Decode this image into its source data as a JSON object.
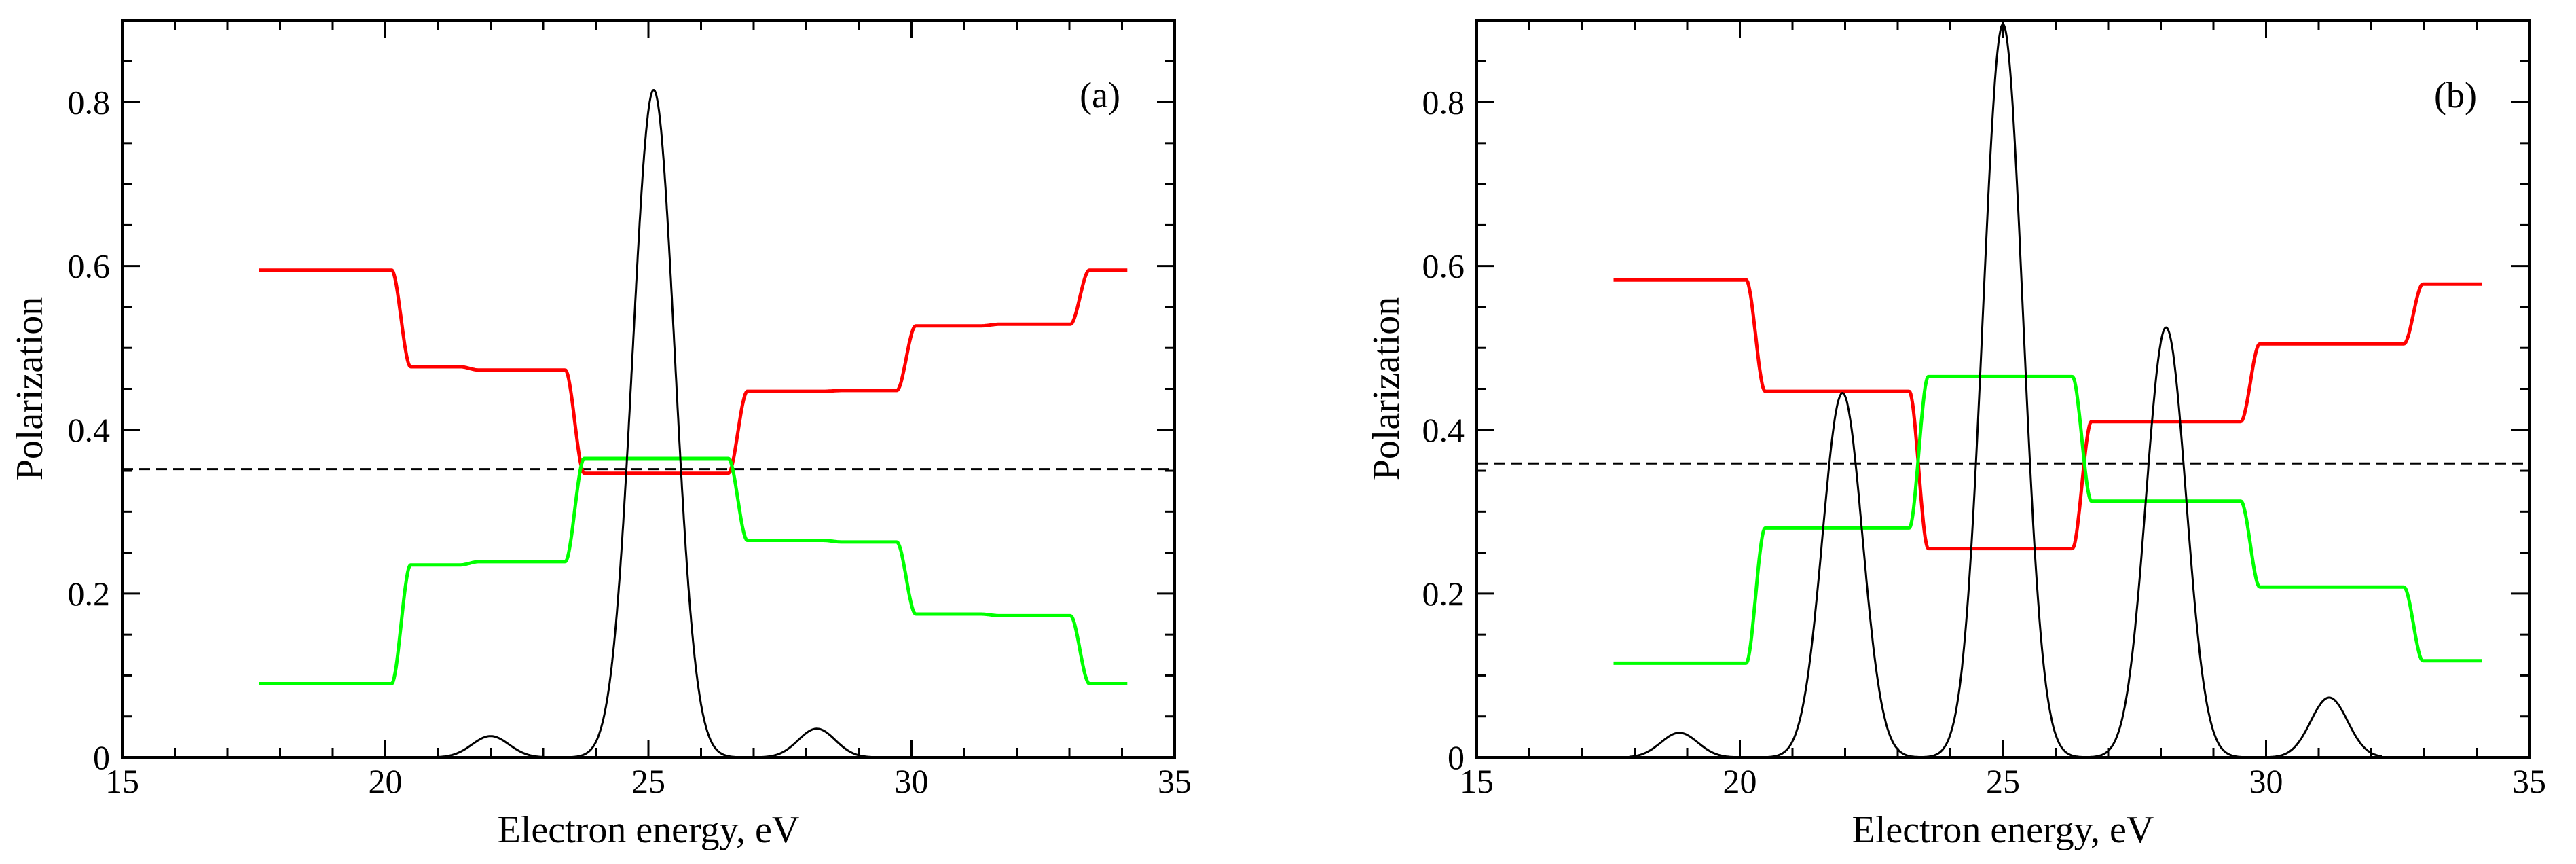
{
  "chart_data": [
    {
      "type": "line",
      "panel_label": "(a)",
      "xlabel": "Electron energy, eV",
      "ylabel": "Polarization",
      "xlim": [
        15,
        35
      ],
      "ylim": [
        0,
        0.9
      ],
      "xticks": [
        15,
        20,
        25,
        30,
        35
      ],
      "xtick_labels": [
        "15",
        "20",
        "25",
        "30",
        "35"
      ],
      "yticks": [
        0,
        0.2,
        0.4,
        0.6,
        0.8
      ],
      "ytick_labels": [
        "0",
        "0.2",
        "0.4",
        "0.6",
        "0.8"
      ],
      "grid": false,
      "reference_line": {
        "y": 0.352,
        "style": "dashed",
        "color": "#000000"
      },
      "series": [
        {
          "name": "red-step",
          "color": "#ff0000",
          "kind": "step",
          "x_start": 17.6,
          "x_end": 34.1,
          "levels": [
            0.595,
            0.477,
            0.473,
            0.347,
            0.447,
            0.448,
            0.527,
            0.529,
            0.595
          ],
          "transitions": [
            20.3,
            21.6,
            23.6,
            26.7,
            28.5,
            29.9,
            31.5,
            33.2
          ]
        },
        {
          "name": "green-step",
          "color": "#00ff00",
          "kind": "step",
          "x_start": 17.6,
          "x_end": 34.1,
          "levels": [
            0.09,
            0.235,
            0.239,
            0.365,
            0.265,
            0.263,
            0.175,
            0.173,
            0.09
          ],
          "transitions": [
            20.3,
            21.6,
            23.6,
            26.7,
            28.5,
            29.9,
            31.5,
            33.2
          ]
        },
        {
          "name": "spectrum-peaks",
          "color": "#000000",
          "kind": "gaussian-sum",
          "x_start": 21.0,
          "x_end": 29.4,
          "peaks": [
            {
              "center": 22.0,
              "height": 0.026,
              "width": 0.35
            },
            {
              "center": 25.1,
              "height": 0.815,
              "width": 0.4
            },
            {
              "center": 28.2,
              "height": 0.035,
              "width": 0.35
            }
          ]
        }
      ]
    },
    {
      "type": "line",
      "panel_label": "(b)",
      "xlabel": "Electron energy, eV",
      "ylabel": "Polarization",
      "xlim": [
        15,
        35
      ],
      "ylim": [
        0,
        0.9
      ],
      "xticks": [
        15,
        20,
        25,
        30,
        35
      ],
      "xtick_labels": [
        "15",
        "20",
        "25",
        "30",
        "35"
      ],
      "yticks": [
        0,
        0.2,
        0.4,
        0.6,
        0.8
      ],
      "ytick_labels": [
        "0",
        "0.2",
        "0.4",
        "0.6",
        "0.8"
      ],
      "grid": false,
      "reference_line": {
        "y": 0.359,
        "style": "dashed",
        "color": "#000000"
      },
      "series": [
        {
          "name": "red-step",
          "color": "#ff0000",
          "kind": "step",
          "x_start": 17.6,
          "x_end": 34.1,
          "levels": [
            0.583,
            0.447,
            0.255,
            0.41,
            0.505,
            0.578
          ],
          "transitions": [
            20.3,
            23.4,
            26.5,
            29.7,
            32.8
          ]
        },
        {
          "name": "green-step",
          "color": "#00ff00",
          "kind": "step",
          "x_start": 17.6,
          "x_end": 34.1,
          "levels": [
            0.115,
            0.28,
            0.465,
            0.313,
            0.208,
            0.118
          ],
          "transitions": [
            20.3,
            23.4,
            26.5,
            29.7,
            32.8
          ]
        },
        {
          "name": "spectrum-peaks",
          "color": "#000000",
          "kind": "gaussian-sum",
          "x_start": 17.9,
          "x_end": 32.2,
          "peaks": [
            {
              "center": 18.85,
              "height": 0.03,
              "width": 0.35
            },
            {
              "center": 21.95,
              "height": 0.445,
              "width": 0.38
            },
            {
              "center": 25.0,
              "height": 0.895,
              "width": 0.38
            },
            {
              "center": 28.1,
              "height": 0.525,
              "width": 0.38
            },
            {
              "center": 31.2,
              "height": 0.073,
              "width": 0.35
            }
          ]
        }
      ]
    }
  ]
}
